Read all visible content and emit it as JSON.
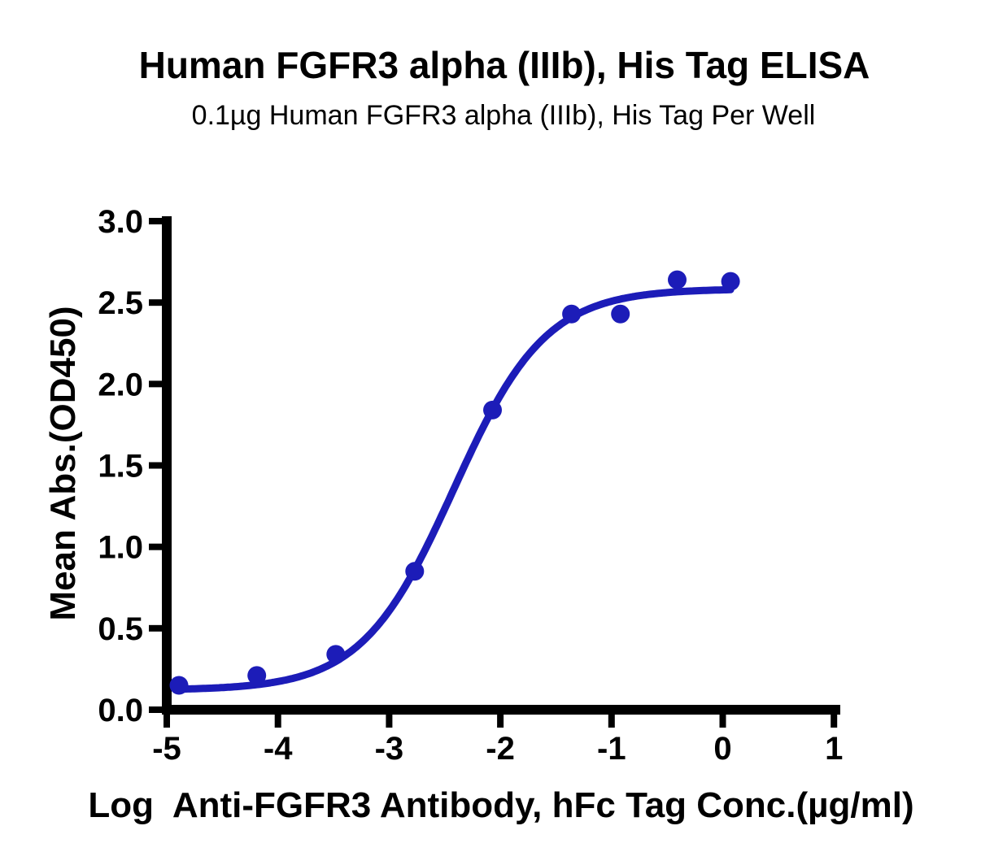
{
  "chart_data": {
    "type": "scatter",
    "title": "Human FGFR3 alpha (IIIb), His Tag ELISA",
    "subtitle": "0.1µg Human FGFR3 alpha (IIIb), His Tag Per Well",
    "xlabel": "Log  Anti-FGFR3 Antibody, hFc Tag Conc.(µg/ml)",
    "ylabel": "Mean Abs.(OD450)",
    "xlim": [
      -5,
      1.06
    ],
    "ylim": [
      0,
      3.03
    ],
    "grid": false,
    "legend": "none",
    "x_ticks": [
      -5,
      -4,
      -3,
      -2,
      -1,
      0,
      1
    ],
    "x_tick_labels": [
      "-5",
      "-4",
      "-3",
      "-2",
      "-1",
      "0",
      "1"
    ],
    "y_ticks": [
      0,
      0.5,
      1,
      1.5,
      2,
      2.5,
      3
    ],
    "y_tick_labels": [
      "0.0",
      "0.5",
      "1.0",
      "1.5",
      "2.0",
      "2.5",
      "3.0"
    ],
    "points": [
      {
        "x": -4.89,
        "y": 0.15
      },
      {
        "x": -4.19,
        "y": 0.21
      },
      {
        "x": -3.48,
        "y": 0.34
      },
      {
        "x": -2.77,
        "y": 0.85
      },
      {
        "x": -2.07,
        "y": 1.84
      },
      {
        "x": -1.36,
        "y": 2.43
      },
      {
        "x": -0.92,
        "y": 2.43
      },
      {
        "x": -0.41,
        "y": 2.64
      },
      {
        "x": 0.07,
        "y": 2.63
      }
    ],
    "curve_fit": {
      "model": "4PL",
      "bottom": 0.12,
      "top": 2.585,
      "log_ec50": -2.42,
      "hill": 1.05,
      "x_start": -4.89,
      "x_end": 0.07
    },
    "colors": {
      "series": "#1C1CB8",
      "axis": "#000000",
      "background": "#FFFFFF"
    },
    "marker_radius": 11.5
  }
}
